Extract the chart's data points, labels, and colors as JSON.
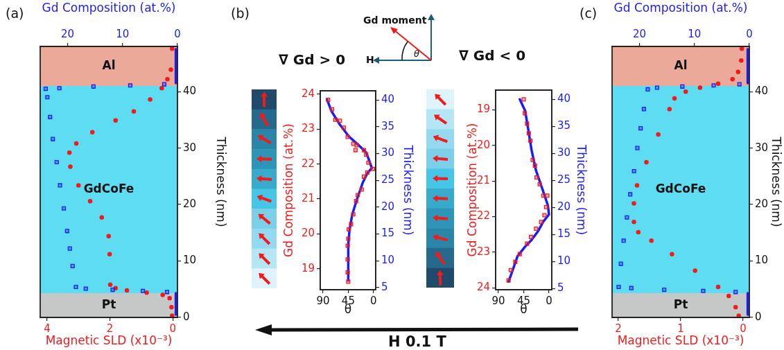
{
  "chart_data": [
    {
      "type": "scatter",
      "xlabel": "Magnetic SLD (x10⁻³)",
      "x2label": "Gd Composition (at.%)",
      "ylabel": "Thickness (nm)",
      "xlim": [
        4.22,
        -0.15
      ],
      "xticks": [
        4,
        2,
        0
      ],
      "x2lim": [
        25,
        0
      ],
      "x2ticks": [
        20,
        10,
        0
      ],
      "ylim": [
        0,
        48
      ],
      "yticks": [
        0,
        10,
        20,
        30,
        40
      ],
      "bands": [
        {
          "axis": "y",
          "from": 0,
          "to": 4.3,
          "label": "Pt",
          "color": "#c6c8c8"
        },
        {
          "axis": "y",
          "from": 4.3,
          "to": 41,
          "label": "GdCoFe",
          "color": "#5ddcf2"
        },
        {
          "axis": "y",
          "from": 41,
          "to": 48,
          "label": "Al",
          "color": "#eba99a"
        }
      ],
      "annotations": [
        "(a)"
      ],
      "series": [
        {
          "type": "line",
          "axis": "x2",
          "color": "#1c1cf0",
          "marker": "none",
          "x": [
            0.3,
            0.3
          ],
          "values": [
            0.5,
            4.3
          ]
        },
        {
          "type": "line",
          "axis": "x2",
          "color": "#1c1cf0",
          "marker": "none",
          "x": [
            0.3,
            0.3
          ],
          "values": [
            41.5,
            47.5
          ]
        },
        {
          "type": "scatter",
          "axis": "x2",
          "color": "#1c1cf0",
          "marker": "square",
          "x": [
            24.0,
            23.7,
            23.2,
            22.7,
            22.0,
            21.4,
            20.7,
            20.1,
            19.6,
            19.1,
            18.5,
            21.5,
            15.3,
            8.6,
            2.4,
            16.7,
            11.8,
            6.3,
            1.9
          ],
          "values": [
            40.5,
            39.0,
            35.5,
            31.6,
            27.5,
            23.4,
            19.3,
            15.3,
            12.2,
            9.1,
            5.4,
            40.6,
            40.9,
            41.1,
            41.3,
            5.1,
            4.9,
            4.7,
            4.5
          ]
        },
        {
          "type": "scatter",
          "color": "#f21b1b",
          "marker": "circle",
          "x": [
            0.02,
            0.06,
            0.17,
            0.35,
            0.72,
            1.24,
            1.82,
            2.56,
            3.07,
            3.29,
            3.26,
            3.0,
            2.63,
            2.26,
            2.04,
            2.01,
            1.99,
            1.82,
            1.46,
            0.83,
            0.32,
            0.1,
            0.04,
            0.02
          ],
          "values": [
            47.6,
            43.9,
            42.2,
            40.6,
            38.6,
            36.5,
            34.9,
            32.8,
            30.8,
            29.2,
            26.7,
            23.4,
            20.6,
            17.7,
            14.4,
            11.2,
            5.8,
            5.2,
            4.8,
            4.4,
            4.0,
            3.4,
            1.8,
            0.3
          ]
        }
      ]
    },
    {
      "type": "scatter",
      "title": "∇ Gd > 0",
      "xlabel": "θ",
      "ylabel": "Gd Composition (at.%)",
      "y2label": "Thickness (nm)",
      "xlim": [
        95,
        -4
      ],
      "xticks": [
        90,
        45,
        0
      ],
      "ylim": [
        18.4,
        24.1
      ],
      "yticks": [
        19,
        20,
        21,
        22,
        23,
        24
      ],
      "y2lim": [
        4.6,
        41.7
      ],
      "y2ticks": [
        5,
        10,
        15,
        20,
        25,
        30,
        35,
        40
      ],
      "annotations": [
        "(b)",
        "Gd moment",
        "H",
        "θ",
        "H 0.1 T"
      ],
      "series": [
        {
          "type": "line",
          "axis": "y2",
          "color": "#1a1aff",
          "marker": "none",
          "x": [
            83,
            75,
            60,
            44,
            28,
            13,
            7,
            3,
            11,
            19,
            29,
            38,
            43,
            45,
            45
          ],
          "values": [
            40.1,
            37.9,
            35.4,
            33.2,
            31.7,
            30.2,
            28.5,
            27.3,
            26.3,
            24.6,
            21.6,
            18.6,
            15.5,
            13.0,
            6.3
          ]
        },
        {
          "type": "scatter",
          "color": "#f21b1b",
          "marker": "square",
          "x": [
            81,
            74,
            68,
            60,
            53,
            46,
            36,
            30,
            32,
            17,
            13,
            9,
            1,
            11,
            17,
            21,
            28,
            31,
            36,
            40,
            44,
            45,
            46,
            46,
            46,
            45
          ],
          "values": [
            23.84,
            23.57,
            23.27,
            23.24,
            23.04,
            22.78,
            22.58,
            22.54,
            22.4,
            22.4,
            22.27,
            22.04,
            21.86,
            21.76,
            21.64,
            21.27,
            21.11,
            20.94,
            20.56,
            20.28,
            20.13,
            19.86,
            19.66,
            19.27,
            18.9,
            18.63
          ]
        }
      ]
    },
    {
      "type": "scatter",
      "title": "∇ Gd < 0",
      "xlabel": "θ",
      "ylabel": "Gd Composition (at.%)",
      "y2label": "Thickness (nm)",
      "xlim": [
        95,
        -5
      ],
      "xticks": [
        90,
        45,
        0
      ],
      "ylim": [
        24.05,
        18.45
      ],
      "yticks": [
        19,
        20,
        21,
        22,
        23,
        24
      ],
      "y2lim": [
        4.8,
        41.7
      ],
      "y2ticks": [
        5,
        10,
        15,
        20,
        25,
        30,
        35,
        40
      ],
      "series": [
        {
          "type": "line",
          "axis": "y2",
          "color": "#1a1aff",
          "marker": "none",
          "x": [
            52,
            42.5,
            37,
            31,
            23,
            10,
            2,
            0,
            10,
            19,
            31,
            43,
            56,
            66,
            72
          ],
          "values": [
            40,
            37.9,
            34.5,
            30.6,
            26.8,
            22.9,
            20.4,
            18.7,
            17.4,
            15.7,
            14.0,
            12.7,
            11.0,
            8.0,
            6.3
          ]
        },
        {
          "type": "scatter",
          "color": "#f21b1b",
          "marker": "square",
          "x": [
            45,
            43,
            39,
            36,
            33,
            29,
            25,
            22,
            16.5,
            10,
            3,
            5,
            8,
            14,
            23,
            32,
            39,
            52,
            60,
            68,
            72
          ],
          "values": [
            18.71,
            19.1,
            19.39,
            19.66,
            19.87,
            20.41,
            20.57,
            20.9,
            21.09,
            21.41,
            21.41,
            21.73,
            21.96,
            22.15,
            22.34,
            22.57,
            22.76,
            23.05,
            23.27,
            23.5,
            23.79
          ]
        }
      ]
    },
    {
      "type": "scatter",
      "xlabel": "Magnetic SLD (x10⁻³)",
      "x2label": "Gd Composition (at.%)",
      "ylabel": "Thickness (nm)",
      "xlim": [
        2.1,
        -0.1
      ],
      "xticks": [
        2,
        1,
        0
      ],
      "x2lim": [
        25,
        0
      ],
      "x2ticks": [
        20,
        10,
        0
      ],
      "ylim": [
        0,
        48
      ],
      "yticks": [
        0,
        10,
        20,
        30,
        40
      ],
      "bands": [
        {
          "axis": "y",
          "from": 0,
          "to": 4.3,
          "label": "Pt",
          "color": "#c6c8c8"
        },
        {
          "axis": "y",
          "from": 4.3,
          "to": 41,
          "label": "GdCoFe",
          "color": "#5ddcf2"
        },
        {
          "axis": "y",
          "from": 41,
          "to": 48,
          "label": "Al",
          "color": "#eba99a"
        }
      ],
      "annotations": [
        "(c)"
      ],
      "series": [
        {
          "type": "line",
          "axis": "x2",
          "color": "#1c1cf0",
          "marker": "none",
          "x": [
            0.3,
            0.3
          ],
          "values": [
            0.5,
            4.3
          ]
        },
        {
          "type": "line",
          "axis": "x2",
          "color": "#1c1cf0",
          "marker": "none",
          "x": [
            0.3,
            0.3
          ],
          "values": [
            41.5,
            47.5
          ]
        },
        {
          "type": "scatter",
          "axis": "x2",
          "color": "#1c1cf0",
          "marker": "square",
          "x": [
            18.5,
            19.2,
            19.8,
            20.4,
            21.0,
            21.7,
            22.3,
            22.9,
            23.4,
            23.8,
            16.8,
            12.2,
            6.5,
            1.8,
            21.5,
            15.5,
            8.4,
            2.5
          ],
          "values": [
            40.4,
            36.9,
            33.5,
            30.0,
            25.9,
            21.8,
            17.7,
            13.6,
            9.5,
            5.4,
            40.7,
            40.9,
            41.1,
            41.3,
            5.2,
            4.9,
            4.7,
            4.5
          ]
        },
        {
          "type": "scatter",
          "color": "#f21b1b",
          "marker": "circle",
          "x": [
            0.02,
            0.03,
            0.08,
            0.17,
            0.4,
            0.69,
            0.92,
            1.1,
            1.18,
            1.36,
            1.55,
            1.7,
            1.75,
            1.75,
            1.68,
            1.47,
            1.14,
            0.77,
            0.4,
            0.23,
            0.12,
            0.07
          ],
          "values": [
            47.6,
            45.5,
            43.5,
            42.2,
            41.4,
            40.7,
            40.0,
            38.8,
            36.9,
            32.4,
            27.5,
            23.4,
            20.2,
            16.9,
            15.1,
            13.6,
            11.2,
            8.3,
            5.4,
            3.8,
            1.8,
            0.3
          ]
        }
      ]
    }
  ]
}
